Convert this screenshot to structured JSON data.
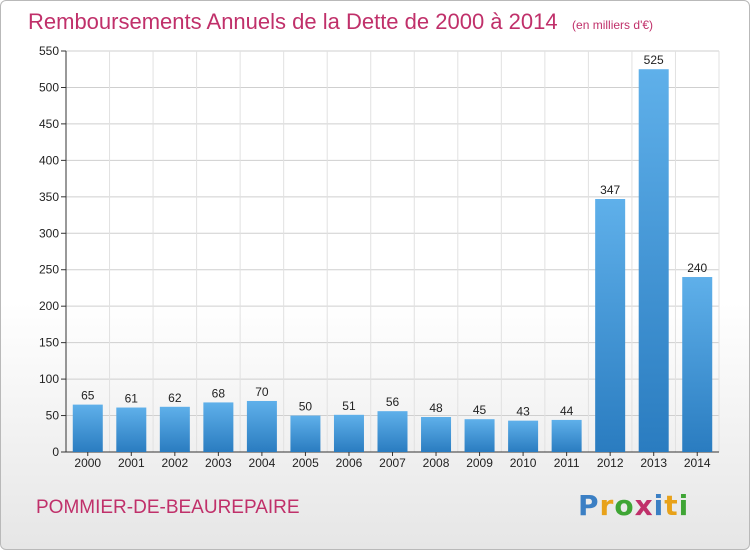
{
  "title": "Remboursements Annuels de la Dette de 2000 à 2014",
  "subtitle": "(en milliers d'€)",
  "commune": "POMMIER-DE-BEAUREPAIRE",
  "logo": {
    "text": "Proxiti",
    "colors": [
      "#3b7fc4",
      "#e8a21a",
      "#3fa535",
      "#c0306a",
      "#3b7fc4",
      "#e8a21a",
      "#3fa535"
    ]
  },
  "colors": {
    "title": "#c0306a",
    "bar_top": "#5fb0ea",
    "bar_bottom": "#2a7cc0"
  },
  "chart_data": {
    "type": "bar",
    "categories": [
      "2000",
      "2001",
      "2002",
      "2003",
      "2004",
      "2005",
      "2006",
      "2007",
      "2008",
      "2009",
      "2010",
      "2011",
      "2012",
      "2013",
      "2014"
    ],
    "values": [
      65,
      61,
      62,
      68,
      70,
      50,
      51,
      56,
      48,
      45,
      43,
      44,
      347,
      525,
      240
    ],
    "ylim": [
      0,
      550
    ],
    "yticks": [
      0,
      50,
      100,
      150,
      200,
      250,
      300,
      350,
      400,
      450,
      500,
      550
    ],
    "grid": true
  }
}
